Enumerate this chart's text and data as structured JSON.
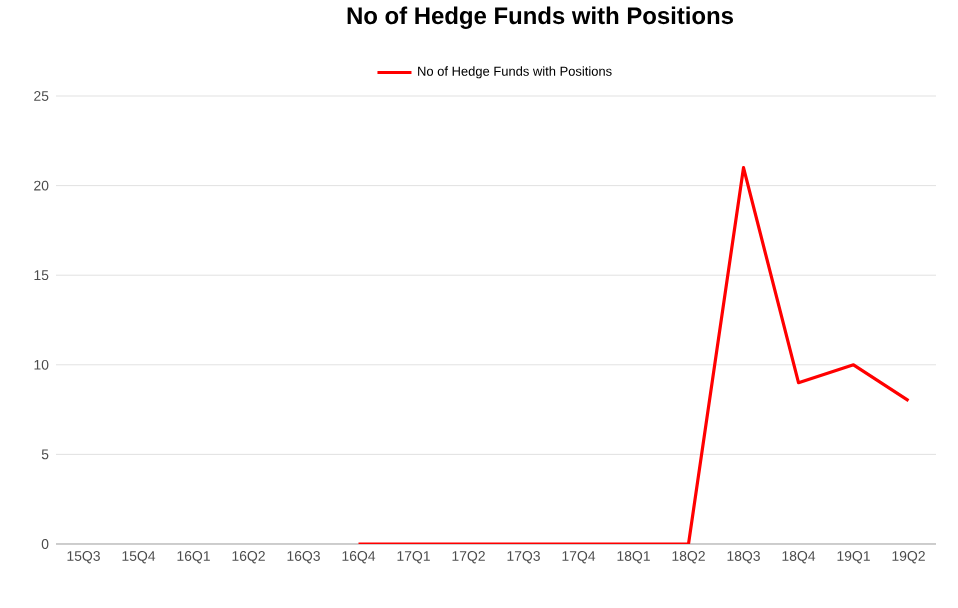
{
  "chart_data": {
    "type": "line",
    "title": "No of Hedge Funds with Positions",
    "categories": [
      "15Q3",
      "15Q4",
      "16Q1",
      "16Q2",
      "16Q3",
      "16Q4",
      "17Q1",
      "17Q2",
      "17Q3",
      "17Q4",
      "18Q1",
      "18Q2",
      "18Q3",
      "18Q4",
      "19Q1",
      "19Q2"
    ],
    "series": [
      {
        "name": "No of Hedge Funds with Positions",
        "color": "#ff0000",
        "values": [
          null,
          null,
          null,
          null,
          null,
          0,
          0,
          0,
          0,
          0,
          0,
          0,
          21,
          9,
          10,
          8
        ]
      }
    ],
    "ylim": [
      0,
      25
    ],
    "yticks": [
      0,
      5,
      10,
      15,
      20,
      25
    ],
    "grid": "y",
    "legend": "top",
    "marker": "none",
    "line_style": "solid"
  }
}
